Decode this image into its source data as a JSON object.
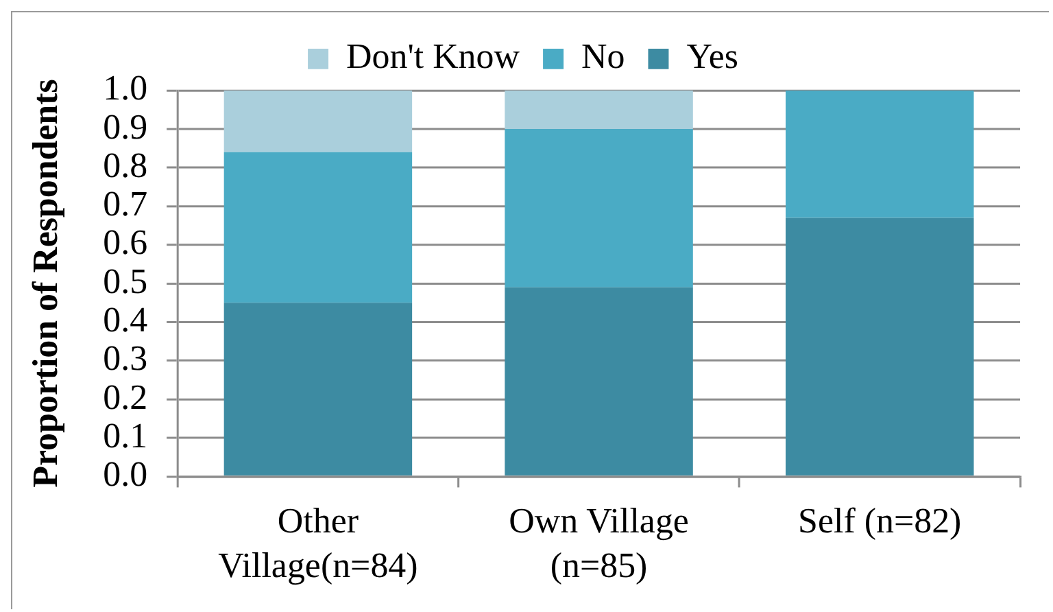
{
  "chart_data": {
    "type": "bar",
    "stacked": true,
    "categories": [
      "Other Village(n=84)",
      "Own Village (n=85)",
      "Self (n=82)"
    ],
    "series": [
      {
        "name": "Yes",
        "color": "#3d8ba2",
        "values": [
          0.45,
          0.49,
          0.67
        ]
      },
      {
        "name": "No",
        "color": "#4aabc5",
        "values": [
          0.39,
          0.41,
          0.33
        ]
      },
      {
        "name": "Don't Know",
        "color": "#aacfdc",
        "values": [
          0.16,
          0.1,
          null
        ]
      }
    ],
    "ylabel": "Proportion of Respondents",
    "ylim": [
      0,
      1
    ],
    "yticks": [
      {
        "value": 0,
        "label": "0.0"
      },
      0.1,
      0.2,
      0.3,
      0.4,
      0.5,
      0.6,
      0.7,
      0.8,
      0.9,
      {
        "value": 1,
        "label": "1.0"
      }
    ],
    "grid": "y",
    "legend": "top"
  }
}
